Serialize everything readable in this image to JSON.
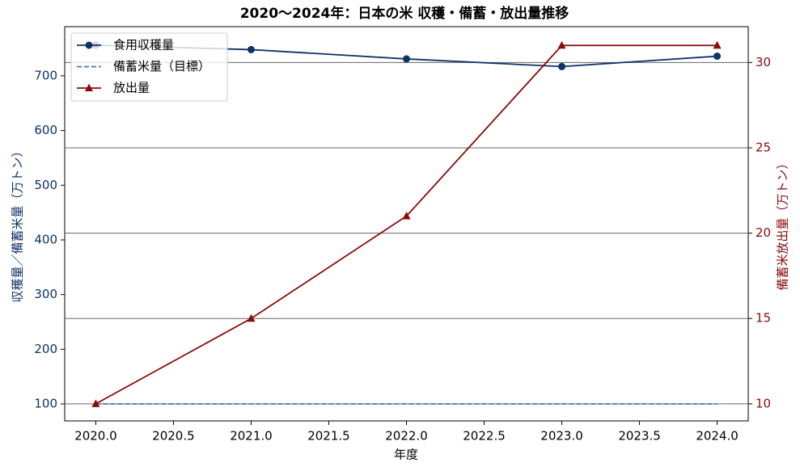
{
  "chart_data": {
    "type": "line",
    "title": "2020〜2024年：日本の米 収穫・備蓄・放出量推移",
    "xlabel": "年度",
    "ylabel": "収穫量／備蓄米量（万トン）",
    "y2label": "備蓄米放出量（万トン）",
    "x": [
      2020,
      2021,
      2022,
      2023,
      2024
    ],
    "series": [
      {
        "name": "食用収穫量",
        "color": "#0d3366",
        "marker": "circle",
        "linestyle": "solid",
        "values": [
          756,
          748,
          731,
          717,
          736
        ]
      },
      {
        "name": "備蓄米量（目標）",
        "color": "#3a7ebf",
        "marker": "none",
        "linestyle": "dashed",
        "values": [
          100,
          100,
          100,
          100,
          100
        ]
      },
      {
        "name": "放出量",
        "color": "#8b0a0a",
        "marker": "triangle",
        "linestyle": "solid",
        "axis": "y2",
        "values": [
          10,
          15,
          21,
          31,
          31
        ]
      }
    ],
    "xlim": [
      2019.8,
      2024.2
    ],
    "xticks": [
      {
        "value": 2020,
        "label": "2020.0"
      },
      {
        "value": 2020.5,
        "label": "2020.5"
      },
      {
        "value": 2021,
        "label": "2021.0"
      },
      {
        "value": 2021.5,
        "label": "2021.5"
      },
      {
        "value": 2022,
        "label": "2022.0"
      },
      {
        "value": 2022.5,
        "label": "2022.5"
      },
      {
        "value": 2023,
        "label": "2023.0"
      },
      {
        "value": 2023.5,
        "label": "2023.5"
      },
      {
        "value": 2024,
        "label": "2024.0"
      }
    ],
    "ylim": [
      69,
      790
    ],
    "yticks": [
      100,
      200,
      300,
      400,
      500,
      600,
      700
    ],
    "y2lim": [
      9.0,
      32.1
    ],
    "y2ticks": [
      10,
      15,
      20,
      25,
      30
    ],
    "ycolor": "#0d3366",
    "y2color": "#8b0a0a",
    "grid": "y2",
    "legend": "upper left"
  }
}
